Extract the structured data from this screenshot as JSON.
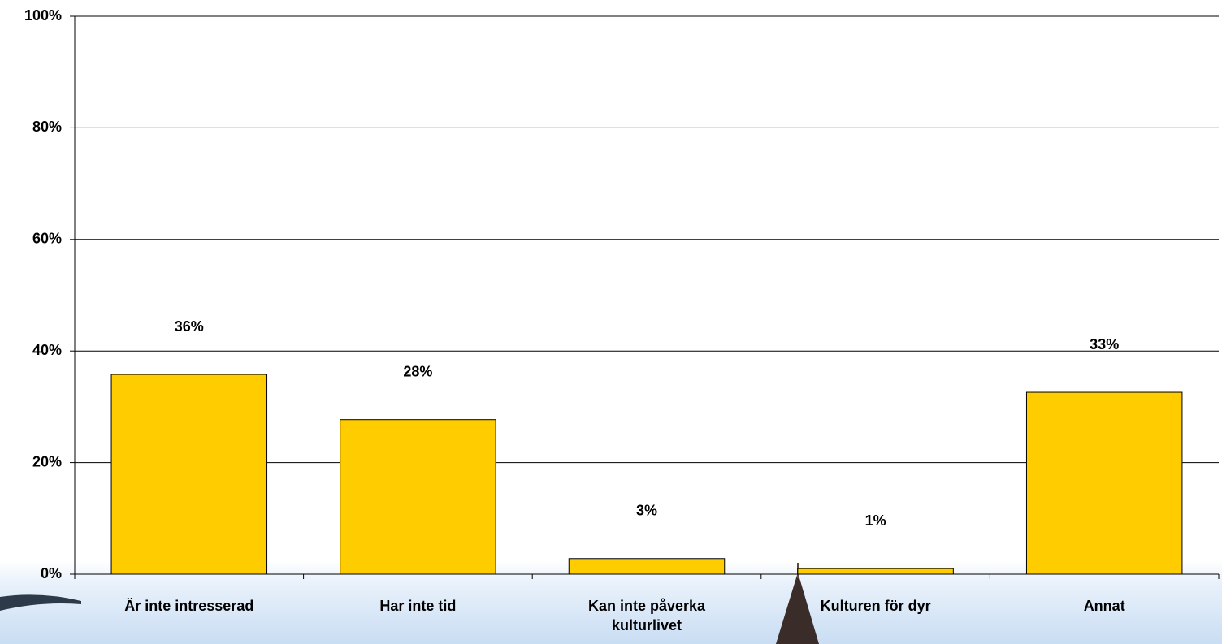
{
  "chart_data": {
    "type": "bar",
    "categories": [
      "Är inte intresserad",
      "Har inte tid",
      "Kan inte påverka kulturlivet",
      "Kulturen för dyr",
      "Annat"
    ],
    "values": [
      35.8,
      27.7,
      2.8,
      1.0,
      32.6
    ],
    "value_labels": [
      "36%",
      "28%",
      "3%",
      "1%",
      "33%"
    ],
    "color": "#ffcc00",
    "ylim": [
      0,
      100
    ],
    "yticks": [
      {
        "value": 0,
        "label": "0%"
      },
      {
        "value": 20,
        "label": "20%"
      },
      {
        "value": 40,
        "label": "40%"
      },
      {
        "value": 60,
        "label": "60%"
      },
      {
        "value": 80,
        "label": "80%"
      },
      {
        "value": 100,
        "label": "100%"
      }
    ],
    "grid": true
  }
}
